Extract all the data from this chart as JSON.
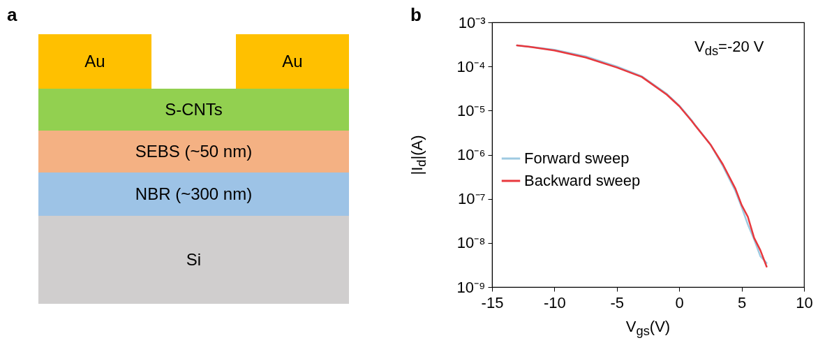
{
  "chart_data": [
    {
      "type": "other",
      "title": "a",
      "annotations": [
        "Au",
        "Au",
        "S-CNTs",
        "SEBS (~50 nm)",
        "NBR (~300 nm)",
        "Si"
      ]
    },
    {
      "type": "line",
      "title": "b",
      "xlabel": "V$_{gs}$(V)",
      "ylabel": "|I$_{d}$|(A)",
      "annotations": [
        "V$_{ds}$=-20 V"
      ],
      "x": [
        -13,
        -12,
        -10,
        -7.5,
        -5,
        -3,
        -1,
        0,
        1,
        1.3,
        2.5,
        3.5,
        4.5,
        5,
        5.5,
        6,
        6.5,
        7
      ],
      "series": [
        {
          "name": "Forward sweep",
          "color": "#9ecae1",
          "values": [
            0.0003,
            0.00028,
            0.00024,
            0.00017,
            0.0001,
            6e-05,
            2.4e-05,
            1.3e-05,
            6e-06,
            4.6e-06,
            1.7e-06,
            5.5e-07,
            1.5e-07,
            6.5e-08,
            2.6e-08,
            1.2e-08,
            5e-09,
            3.5e-09
          ]
        },
        {
          "name": "Backward sweep",
          "color": "#e8383d",
          "values": [
            0.0003,
            0.00028,
            0.00023,
            0.00016,
            9.5e-05,
            5.8e-05,
            2.3e-05,
            1.26e-05,
            5.8e-06,
            4.5e-06,
            1.7e-06,
            6e-07,
            1.7e-07,
            7.2e-08,
            3.9e-08,
            1.3e-08,
            6.8e-09,
            2.9e-09
          ]
        }
      ],
      "log": "y",
      "xlim": [
        -15,
        10
      ],
      "xticks": [
        -15,
        -10,
        -5,
        0,
        5,
        10
      ],
      "ylim": [
        1e-09,
        0.001
      ],
      "yticks": [
        {
          "value": 1e-09,
          "label": "10⁻⁹"
        },
        {
          "value": 1e-08,
          "label": "10⁻⁸"
        },
        {
          "value": 1e-07,
          "label": "10⁻⁷"
        },
        {
          "value": 1e-06,
          "label": "10⁻⁶"
        },
        {
          "value": 1e-05,
          "label": "10⁻⁵"
        },
        {
          "value": 0.0001,
          "label": "10⁻⁴"
        },
        {
          "value": 0.001,
          "label": "10⁻³"
        }
      ],
      "legend": "left",
      "grid": false,
      "marker": "none",
      "line_style": "solid"
    }
  ]
}
